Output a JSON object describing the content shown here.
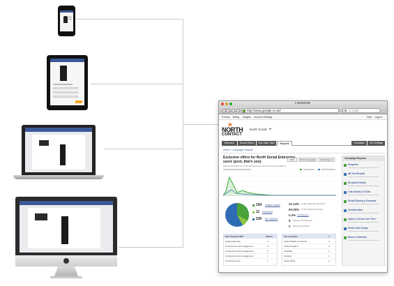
{
  "browser": {
    "window_title": "Facebook",
    "address": "http://www.google.co.uk/",
    "search_placeholder": "Google"
  },
  "fb_menu": [
    "Friends",
    "Billing",
    "Insights",
    "Account Settings"
  ],
  "fb_menu_right": [
    "Help",
    "Logout"
  ],
  "brand": {
    "north": "NORTH",
    "contact": "CONTACT"
  },
  "page_name": "North Social",
  "tabs": [
    "Welcome",
    "Social Offers",
    "Like Gate Tabs",
    "Reports"
  ],
  "tabs_right": [
    "Templates",
    "Get Settings"
  ],
  "breadcrumb": "Home > Campaign Reports",
  "campaign": {
    "title_line1": "Exclusive offers for North Social Enterprise",
    "title_line2": "users (psst..that's you)",
    "subtitle": "Started 1/13/2013 at 10:43 with Exclusive Offers Recommendations"
  },
  "action_buttons": [
    "Print",
    "Share Campaign",
    "Email Report"
  ],
  "stats_left": [
    {
      "value": "104",
      "label": "Unique opens"
    },
    {
      "value": "11",
      "label": "Received"
    },
    {
      "value": "230",
      "label": "No Claimed"
    }
  ],
  "stats_right": [
    {
      "value": "21.14%",
      "label": "of all recipients redeemed"
    },
    {
      "value": "60.00%",
      "label": "of all recipients opened"
    },
    {
      "value": "0.3%",
      "label": "Unsubscribe"
    },
    {
      "value": "5",
      "label": "Shares on Facebook"
    },
    {
      "value": "0",
      "label": "Shares via Twitter"
    }
  ],
  "table1": {
    "headers": [
      "Most Popular Wall",
      "Shares"
    ],
    "rows": [
      [
        "Legal settlement",
        "4"
      ],
      [
        "Conferences and engagement",
        "3"
      ],
      [
        "Conferences and engagement",
        "2"
      ],
      [
        "Conferences and engagement",
        "1"
      ],
      [
        "Conference.com",
        "1"
      ]
    ]
  },
  "table2": {
    "headers": [
      "Top Countries",
      "#"
    ],
    "rows": [
      [
        "United States of America",
        "4"
      ],
      [
        "United Kingdom",
        "3"
      ],
      [
        "Australia",
        "2"
      ],
      [
        "Canada",
        "1"
      ],
      [
        "South Africa",
        "1"
      ]
    ]
  },
  "sidebar": {
    "title": "Campaign Reports",
    "items": [
      "Snapshot",
      "AB Test Results",
      "Recipient Details",
      "Link Activity & Clicks",
      "Social Sharing & Forwards",
      "Unsubscribes",
      "Opens & Clicks Over Time",
      "Email Client Usage",
      "Bounce Summary"
    ]
  },
  "colors": {
    "fb_blue": "#3b5998",
    "chart_green": "#3aaa35",
    "chart_blue": "#3b73b9",
    "pie_green": "#48a339",
    "pie_blue": "#2e6db4"
  }
}
